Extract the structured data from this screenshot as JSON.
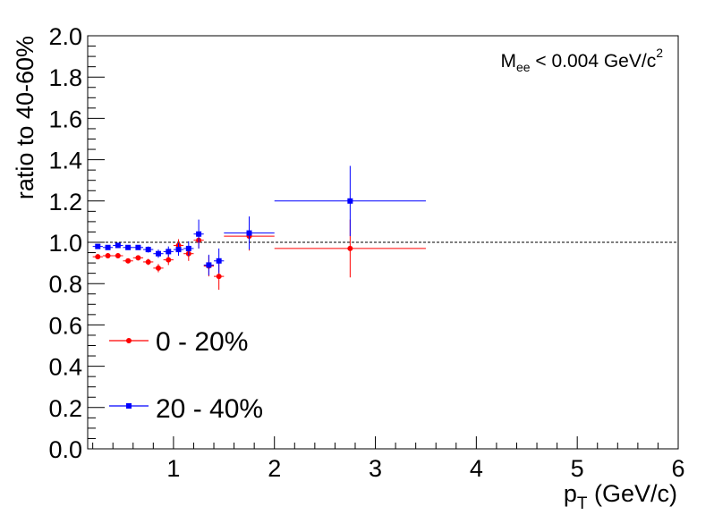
{
  "chart_data": {
    "type": "scatter",
    "xlabel": "p",
    "xlabel_sub": "T",
    "xlabel_unit": "(GeV/c)",
    "ylabel": "ratio to 40-60%",
    "xlim": [
      0.15,
      6.0
    ],
    "ylim": [
      0.0,
      2.0
    ],
    "xticks": [
      1,
      2,
      3,
      4,
      5,
      6
    ],
    "xtick_labels": [
      "1",
      "2",
      "3",
      "4",
      "5",
      "6"
    ],
    "yticks": [
      0.0,
      0.2,
      0.4,
      0.6,
      0.8,
      1.0,
      1.2,
      1.4,
      1.6,
      1.8,
      2.0
    ],
    "ytick_labels": [
      "0.0",
      "0.2",
      "0.4",
      "0.6",
      "0.8",
      "1.0",
      "1.2",
      "1.4",
      "1.6",
      "1.8",
      "2.0"
    ],
    "reference_line": 1.0,
    "grid": false,
    "legend_position": "bottom-left",
    "annotation": {
      "main": "M",
      "sub": "ee",
      "middle": " < 0.004 GeV/c",
      "sup": "2"
    },
    "series": [
      {
        "name": "0 - 20%",
        "color": "#ff0000",
        "marker": "circle",
        "points": [
          {
            "x": 0.25,
            "xerr": 0.05,
            "y": 0.93,
            "yerr": 0.012
          },
          {
            "x": 0.35,
            "xerr": 0.05,
            "y": 0.935,
            "yerr": 0.012
          },
          {
            "x": 0.45,
            "xerr": 0.05,
            "y": 0.935,
            "yerr": 0.012
          },
          {
            "x": 0.55,
            "xerr": 0.05,
            "y": 0.91,
            "yerr": 0.012
          },
          {
            "x": 0.65,
            "xerr": 0.05,
            "y": 0.925,
            "yerr": 0.012
          },
          {
            "x": 0.75,
            "xerr": 0.05,
            "y": 0.905,
            "yerr": 0.015
          },
          {
            "x": 0.85,
            "xerr": 0.05,
            "y": 0.875,
            "yerr": 0.02
          },
          {
            "x": 0.95,
            "xerr": 0.05,
            "y": 0.915,
            "yerr": 0.025
          },
          {
            "x": 1.05,
            "xerr": 0.05,
            "y": 0.985,
            "yerr": 0.03
          },
          {
            "x": 1.15,
            "xerr": 0.05,
            "y": 0.945,
            "yerr": 0.035
          },
          {
            "x": 1.25,
            "xerr": 0.05,
            "y": 1.01,
            "yerr": 0.04
          },
          {
            "x": 1.35,
            "xerr": 0.05,
            "y": 0.885,
            "yerr": 0.05
          },
          {
            "x": 1.45,
            "xerr": 0.05,
            "y": 0.835,
            "yerr": 0.065
          },
          {
            "x": 1.75,
            "xerr": 0.25,
            "y": 1.03,
            "yerr": 0.07
          },
          {
            "x": 2.75,
            "xerr": 0.75,
            "y": 0.97,
            "yerr": 0.14
          }
        ]
      },
      {
        "name": "20 - 40%",
        "color": "#0000ff",
        "marker": "square",
        "points": [
          {
            "x": 0.25,
            "xerr": 0.05,
            "y": 0.98,
            "yerr": 0.012
          },
          {
            "x": 0.35,
            "xerr": 0.05,
            "y": 0.975,
            "yerr": 0.012
          },
          {
            "x": 0.45,
            "xerr": 0.05,
            "y": 0.985,
            "yerr": 0.012
          },
          {
            "x": 0.55,
            "xerr": 0.05,
            "y": 0.975,
            "yerr": 0.012
          },
          {
            "x": 0.65,
            "xerr": 0.05,
            "y": 0.975,
            "yerr": 0.012
          },
          {
            "x": 0.75,
            "xerr": 0.05,
            "y": 0.965,
            "yerr": 0.015
          },
          {
            "x": 0.85,
            "xerr": 0.05,
            "y": 0.945,
            "yerr": 0.02
          },
          {
            "x": 0.95,
            "xerr": 0.05,
            "y": 0.955,
            "yerr": 0.025
          },
          {
            "x": 1.05,
            "xerr": 0.05,
            "y": 0.965,
            "yerr": 0.03
          },
          {
            "x": 1.15,
            "xerr": 0.05,
            "y": 0.97,
            "yerr": 0.035
          },
          {
            "x": 1.25,
            "xerr": 0.05,
            "y": 1.04,
            "yerr": 0.07
          },
          {
            "x": 1.35,
            "xerr": 0.05,
            "y": 0.89,
            "yerr": 0.05
          },
          {
            "x": 1.45,
            "xerr": 0.05,
            "y": 0.91,
            "yerr": 0.06
          },
          {
            "x": 1.75,
            "xerr": 0.25,
            "y": 1.045,
            "yerr": 0.08
          },
          {
            "x": 2.75,
            "xerr": 0.75,
            "y": 1.2,
            "yerr": 0.17
          }
        ]
      }
    ]
  }
}
